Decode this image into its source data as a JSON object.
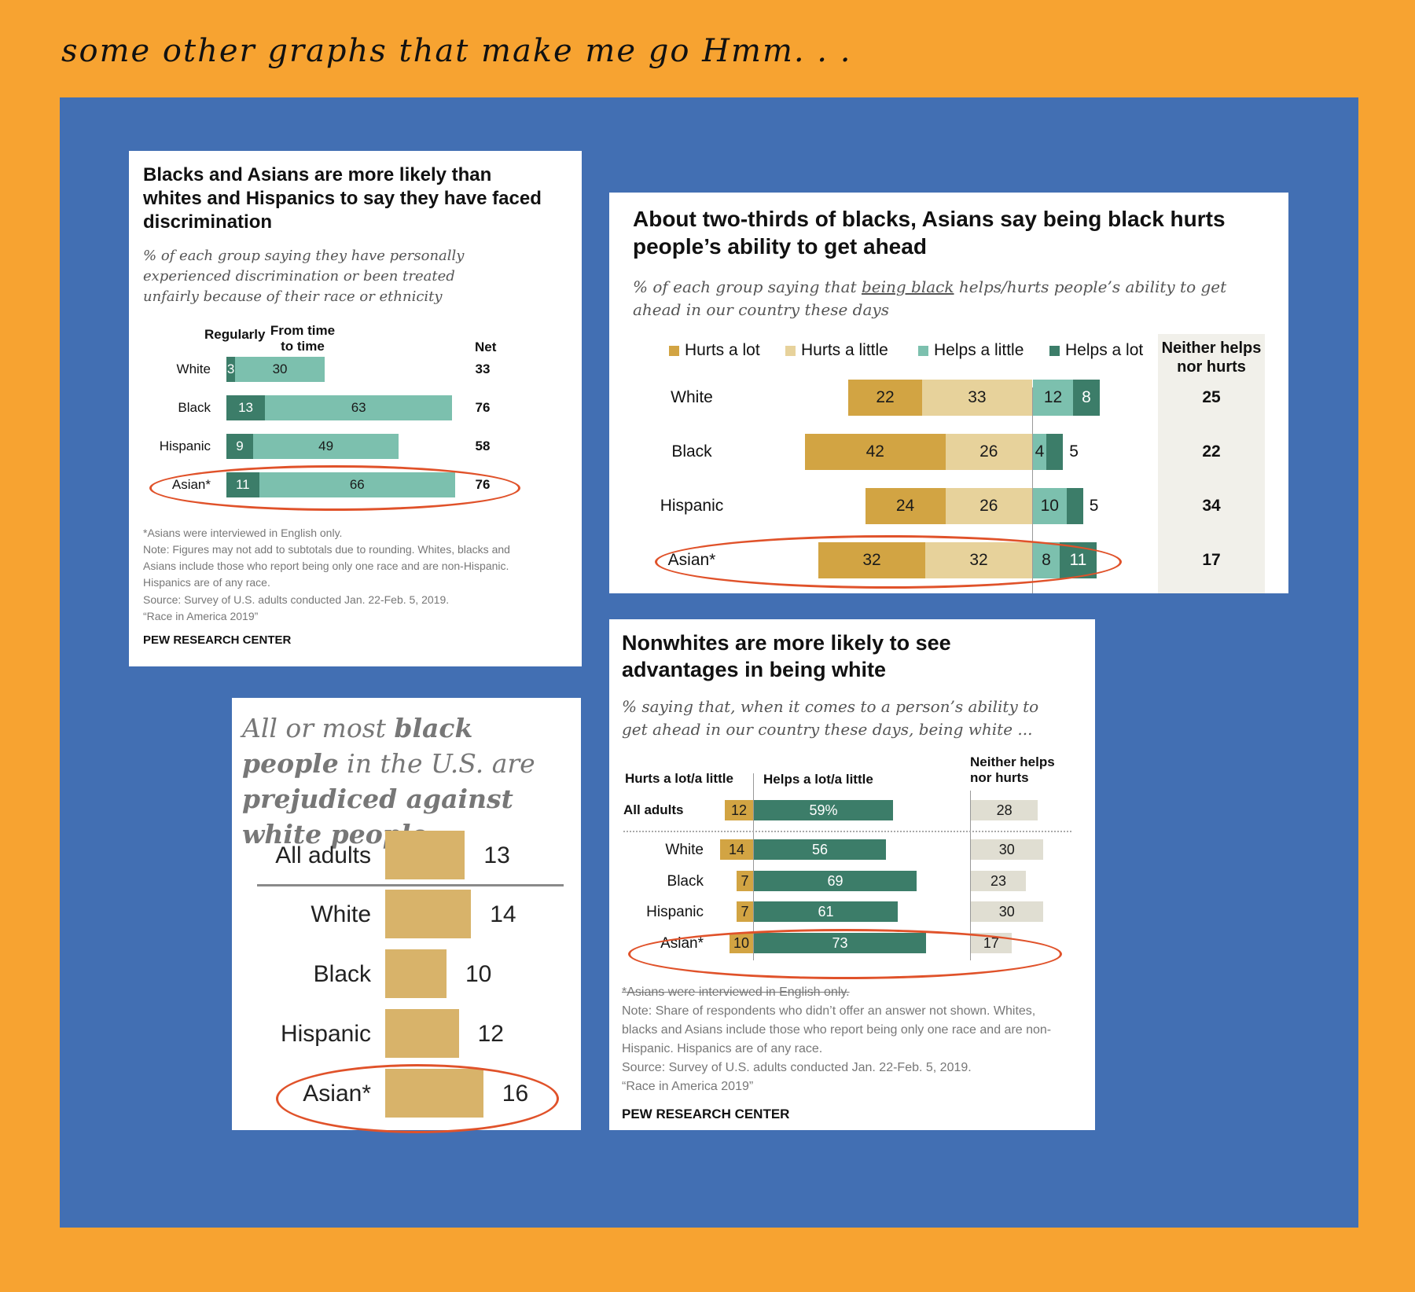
{
  "heading": "some other graphs that make me go Hmm. . .",
  "colors": {
    "dark_teal": "#3C7D69",
    "light_teal": "#7CC0AE",
    "gold": "#D2A443",
    "light_gold": "#E7D29B",
    "tan": "#D8B36A",
    "gray_bar": "#E0DED2",
    "circle": "#E0522A"
  },
  "card1": {
    "title": "Blacks and Asians are more likely than whites and Hispanics to say they have faced discrimination",
    "subtitle": "% of each group saying they have personally experienced discrimination or been treated unfairly because of their race or ethnicity",
    "col_regularly": "Regularly",
    "col_time": "From time to time",
    "col_net": "Net",
    "footnote": "*Asians were interviewed in English only.",
    "note": "Note: Figures may not add to subtotals due to rounding. Whites, blacks and Asians include those who report being only one race and are non-Hispanic. Hispanics are of any race.",
    "source": "Source: Survey of U.S. adults conducted Jan. 22-Feb. 5, 2019.",
    "report": "“Race in America 2019”",
    "org": "PEW RESEARCH CENTER"
  },
  "card2": {
    "title": "About two-thirds of blacks, Asians say being black hurts people’s ability to get ahead",
    "subtitle_pre": "% of each group saying that ",
    "subtitle_underline": "being black",
    "subtitle_post": " helps/hurts people’s ability to get ahead in our country these days",
    "neither_header": "Neither helps nor hurts"
  },
  "card3": {
    "title_1": "All or most ",
    "title_2": "black people",
    "title_3": " in the U.S. are ",
    "title_4": "prejudiced against white people"
  },
  "card4": {
    "title": "Nonwhites are more likely to see advantages in being white",
    "subtitle": "% saying that, when it comes to a person’s ability to get ahead in our country these days, being white ...",
    "col_hurts": "Hurts a lot/a little",
    "col_helps": "Helps a lot/a little",
    "col_neither": "Neither helps nor hurts",
    "footnote": "*Asians were interviewed in English only.",
    "note": "Note: Share of respondents who didn’t offer an answer not shown. Whites, blacks and Asians include those who report being only one race and are non-Hispanic. Hispanics are of any race.",
    "source": "Source: Survey of U.S. adults conducted Jan. 22-Feb. 5, 2019.",
    "report": "“Race in America 2019”",
    "org": "PEW RESEARCH CENTER"
  },
  "chart_data": [
    {
      "type": "bar",
      "stacked": true,
      "title": "Blacks and Asians are more likely than whites and Hispanics to say they have faced discrimination",
      "categories": [
        "White",
        "Black",
        "Hispanic",
        "Asian*"
      ],
      "series": [
        {
          "name": "Regularly",
          "values": [
            3,
            13,
            9,
            11
          ]
        },
        {
          "name": "From time to time",
          "values": [
            30,
            63,
            49,
            66
          ]
        }
      ],
      "net": [
        33,
        76,
        58,
        76
      ],
      "xlim": [
        0,
        100
      ]
    },
    {
      "type": "bar",
      "stacked": true,
      "diverging": true,
      "title": "About two-thirds of blacks, Asians say being black hurts people’s ability to get ahead",
      "categories": [
        "White",
        "Black",
        "Hispanic",
        "Asian*"
      ],
      "series": [
        {
          "name": "Hurts a lot",
          "values": [
            22,
            42,
            24,
            32
          ]
        },
        {
          "name": "Hurts a little",
          "values": [
            33,
            26,
            26,
            32
          ]
        },
        {
          "name": "Helps a little",
          "values": [
            12,
            4,
            10,
            8
          ]
        },
        {
          "name": "Helps a lot",
          "values": [
            8,
            5,
            5,
            11
          ]
        }
      ],
      "neither": [
        25,
        22,
        34,
        17
      ]
    },
    {
      "type": "bar",
      "title": "All or most black people in the U.S. are prejudiced against white people",
      "categories": [
        "All adults",
        "White",
        "Black",
        "Hispanic",
        "Asian*"
      ],
      "values": [
        13,
        14,
        10,
        12,
        16
      ]
    },
    {
      "type": "bar",
      "diverging": true,
      "title": "Nonwhites are more likely to see advantages in being white",
      "categories": [
        "All adults",
        "White",
        "Black",
        "Hispanic",
        "Asian*"
      ],
      "series": [
        {
          "name": "Hurts a lot/a little",
          "values": [
            12,
            14,
            7,
            7,
            10
          ]
        },
        {
          "name": "Helps a lot/a little",
          "values": [
            59,
            56,
            69,
            61,
            73
          ],
          "labels": [
            "59%",
            "56",
            "69",
            "61",
            "73"
          ]
        },
        {
          "name": "Neither helps nor hurts",
          "values": [
            28,
            30,
            23,
            30,
            17
          ]
        }
      ]
    }
  ]
}
